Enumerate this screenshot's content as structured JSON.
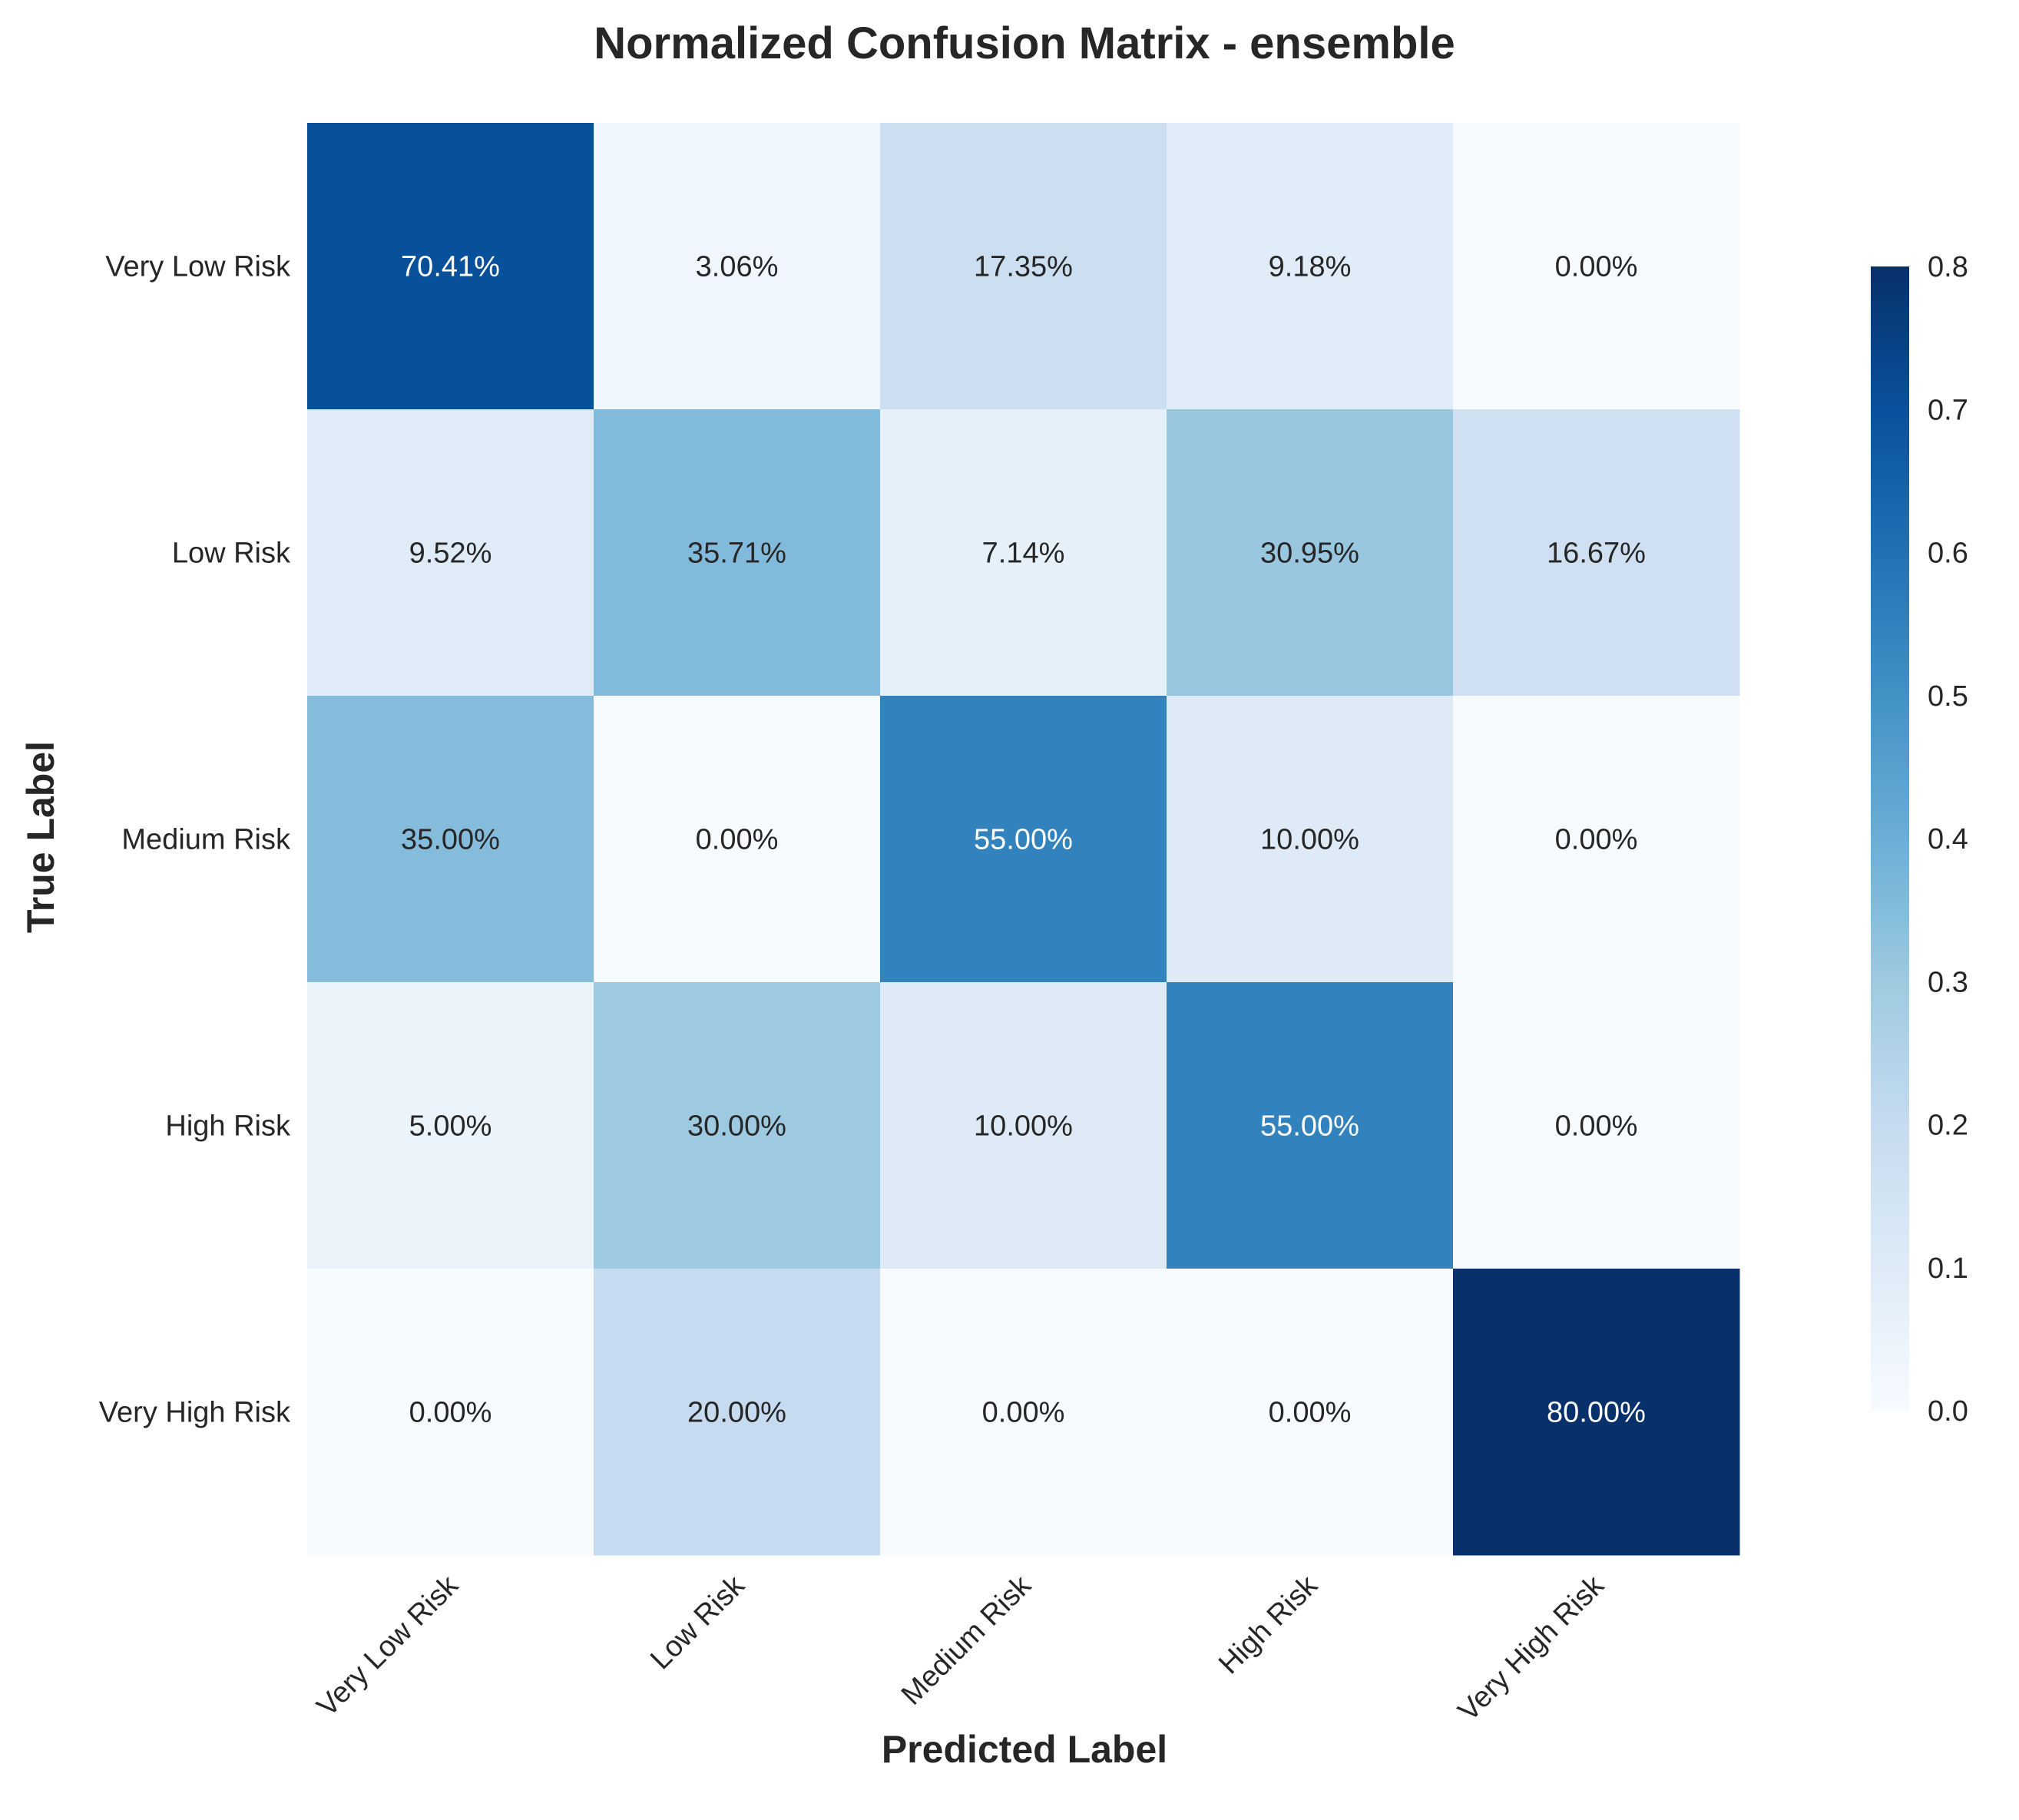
{
  "chart_data": {
    "type": "heatmap",
    "title": "Normalized Confusion Matrix - ensemble",
    "xlabel": "Predicted Label",
    "ylabel": "True Label",
    "x_categories": [
      "Very Low Risk",
      "Low Risk",
      "Medium Risk",
      "High Risk",
      "Very High Risk"
    ],
    "y_categories": [
      "Very Low Risk",
      "Low Risk",
      "Medium Risk",
      "High Risk",
      "Very High Risk"
    ],
    "values": [
      [
        0.7041,
        0.0306,
        0.1735,
        0.0918,
        0.0
      ],
      [
        0.0952,
        0.3571,
        0.0714,
        0.3095,
        0.1667
      ],
      [
        0.35,
        0.0,
        0.55,
        0.1,
        0.0
      ],
      [
        0.05,
        0.3,
        0.1,
        0.55,
        0.0
      ],
      [
        0.0,
        0.2,
        0.0,
        0.0,
        0.8
      ]
    ],
    "cell_labels": [
      [
        "70.41%",
        "3.06%",
        "17.35%",
        "9.18%",
        "0.00%"
      ],
      [
        "9.52%",
        "35.71%",
        "7.14%",
        "30.95%",
        "16.67%"
      ],
      [
        "35.00%",
        "0.00%",
        "55.00%",
        "10.00%",
        "0.00%"
      ],
      [
        "5.00%",
        "30.00%",
        "10.00%",
        "55.00%",
        "0.00%"
      ],
      [
        "0.00%",
        "20.00%",
        "0.00%",
        "0.00%",
        "80.00%"
      ]
    ],
    "colorbar": {
      "vmin": 0.0,
      "vmax": 0.8,
      "ticks": [
        "0.0",
        "0.1",
        "0.2",
        "0.3",
        "0.4",
        "0.5",
        "0.6",
        "0.7",
        "0.8"
      ],
      "colormap": "Blues"
    },
    "grid": false,
    "text_dark": "#262626",
    "text_light": "#ffffff"
  }
}
